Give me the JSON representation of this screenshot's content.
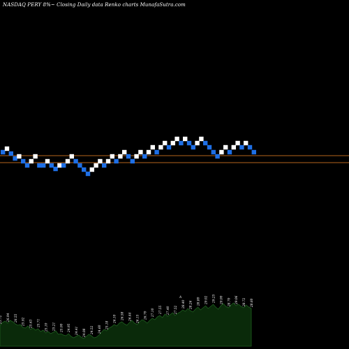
{
  "chart_data": {
    "type": "renko",
    "title": "NASDAQ PERY 8%~ Closing Daily data Renko charts MunafaSutra.com",
    "colors": {
      "background": "#000000",
      "up_brick": "#ffffff",
      "down_brick": "#1e6fe6",
      "ref_line": "#b5651d",
      "volume_fill": "#0a2a0a",
      "volume_line": "#1f5f1f",
      "text": "#ffffff"
    },
    "reference_lines": [
      223,
      233
    ],
    "bricks": [
      {
        "dir": "down",
        "level": 218
      },
      {
        "dir": "up",
        "level": 213
      },
      {
        "dir": "down",
        "level": 220
      },
      {
        "dir": "down",
        "level": 227
      },
      {
        "dir": "up",
        "level": 224
      },
      {
        "dir": "down",
        "level": 231
      },
      {
        "dir": "down",
        "level": 237
      },
      {
        "dir": "up",
        "level": 231
      },
      {
        "dir": "up",
        "level": 224
      },
      {
        "dir": "down",
        "level": 237
      },
      {
        "dir": "down",
        "level": 237
      },
      {
        "dir": "up",
        "level": 231
      },
      {
        "dir": "down",
        "level": 237
      },
      {
        "dir": "down",
        "level": 242
      },
      {
        "dir": "up",
        "level": 237
      },
      {
        "dir": "down",
        "level": 237
      },
      {
        "dir": "up",
        "level": 231
      },
      {
        "dir": "up",
        "level": 224
      },
      {
        "dir": "down",
        "level": 231
      },
      {
        "dir": "down",
        "level": 237
      },
      {
        "dir": "down",
        "level": 243
      },
      {
        "dir": "down",
        "level": 249
      },
      {
        "dir": "up",
        "level": 243
      },
      {
        "dir": "up",
        "level": 237
      },
      {
        "dir": "up",
        "level": 231
      },
      {
        "dir": "down",
        "level": 237
      },
      {
        "dir": "up",
        "level": 231
      },
      {
        "dir": "up",
        "level": 224
      },
      {
        "dir": "down",
        "level": 231
      },
      {
        "dir": "up",
        "level": 224
      },
      {
        "dir": "up",
        "level": 218
      },
      {
        "dir": "down",
        "level": 224
      },
      {
        "dir": "down",
        "level": 231
      },
      {
        "dir": "up",
        "level": 224
      },
      {
        "dir": "up",
        "level": 218
      },
      {
        "dir": "down",
        "level": 224
      },
      {
        "dir": "up",
        "level": 218
      },
      {
        "dir": "up",
        "level": 211
      },
      {
        "dir": "down",
        "level": 218
      },
      {
        "dir": "up",
        "level": 211
      },
      {
        "dir": "up",
        "level": 205
      },
      {
        "dir": "down",
        "level": 211
      },
      {
        "dir": "up",
        "level": 205
      },
      {
        "dir": "up",
        "level": 199
      },
      {
        "dir": "down",
        "level": 205
      },
      {
        "dir": "up",
        "level": 199
      },
      {
        "dir": "down",
        "level": 205
      },
      {
        "dir": "down",
        "level": 211
      },
      {
        "dir": "up",
        "level": 205
      },
      {
        "dir": "up",
        "level": 199
      },
      {
        "dir": "down",
        "level": 205
      },
      {
        "dir": "down",
        "level": 211
      },
      {
        "dir": "down",
        "level": 218
      },
      {
        "dir": "down",
        "level": 224
      },
      {
        "dir": "up",
        "level": 218
      },
      {
        "dir": "up",
        "level": 211
      },
      {
        "dir": "down",
        "level": 218
      },
      {
        "dir": "up",
        "level": 211
      },
      {
        "dir": "up",
        "level": 205
      },
      {
        "dir": "down",
        "level": 211
      },
      {
        "dir": "up",
        "level": 205
      },
      {
        "dir": "down",
        "level": 211
      },
      {
        "dir": "down",
        "level": 218
      }
    ],
    "volume": {
      "values": [
        30,
        34,
        36,
        33,
        37,
        35,
        32,
        30,
        31,
        27,
        26,
        29,
        24,
        26,
        23,
        25,
        21,
        23,
        19,
        21,
        18,
        20,
        22,
        17,
        18,
        16,
        15,
        18,
        14,
        12,
        14,
        16,
        13,
        11,
        14,
        17,
        15,
        12,
        13,
        16,
        20,
        24,
        22,
        26,
        28,
        31,
        29,
        33,
        35,
        32,
        30,
        34,
        37,
        33,
        31,
        35,
        38,
        36,
        33,
        37,
        40,
        38,
        42,
        44,
        41,
        46,
        43,
        45,
        48,
        44,
        47,
        49,
        52,
        50,
        54,
        51,
        49,
        53,
        56,
        52,
        55,
        58,
        54,
        57,
        60,
        56,
        53,
        58,
        61,
        57,
        55,
        59,
        62,
        58,
        60,
        57,
        55,
        59,
        56,
        54
      ],
      "max": 70,
      "labels": [
        "25.72",
        "26.80",
        "27.08",
        "26.94",
        "27.10",
        "26.86",
        "26.55",
        "26.22",
        "26.44",
        "25.92",
        "25.71",
        "26.16",
        "25.63",
        "25.90",
        "25.46",
        "25.71",
        "25.30",
        "25.50",
        "25.10",
        "25.32",
        "24.99",
        "25.21",
        "25.44",
        "24.88",
        "25.00",
        "24.76",
        "24.60",
        "24.95",
        "24.48",
        "24.20",
        "24.41",
        "24.66",
        "24.30",
        "24.08",
        "24.39",
        "24.72",
        "24.52",
        "24.19",
        "24.33",
        "24.60",
        "25.02",
        "25.40",
        "25.18",
        "25.62",
        "25.84",
        "26.10",
        "25.90",
        "26.35",
        "26.58",
        "26.20",
        "26.02",
        "26.44",
        "26.80",
        "26.36",
        "26.15",
        "26.57",
        "26.93",
        "26.70",
        "26.38",
        "26.82",
        "27.10",
        "26.88",
        "27.32",
        "27.55",
        "27.21",
        "27.74",
        "27.40",
        "27.62",
        "27.95",
        "27.52",
        "27.86",
        "28.10",
        "28.40",
        "28.15",
        "28.58",
        "28.26",
        "28.02",
        "28.47",
        "28.80",
        "28.38",
        "28.70",
        "29.02",
        "28.60",
        "28.92",
        "29.25",
        "28.82",
        "28.48",
        "29.00",
        "29.36",
        "28.94",
        "28.70",
        "29.14",
        "29.50",
        "29.06",
        "29.30",
        "28.98",
        "28.72",
        "29.18",
        "28.86",
        "28.60"
      ],
      "extra_label": "A"
    }
  }
}
